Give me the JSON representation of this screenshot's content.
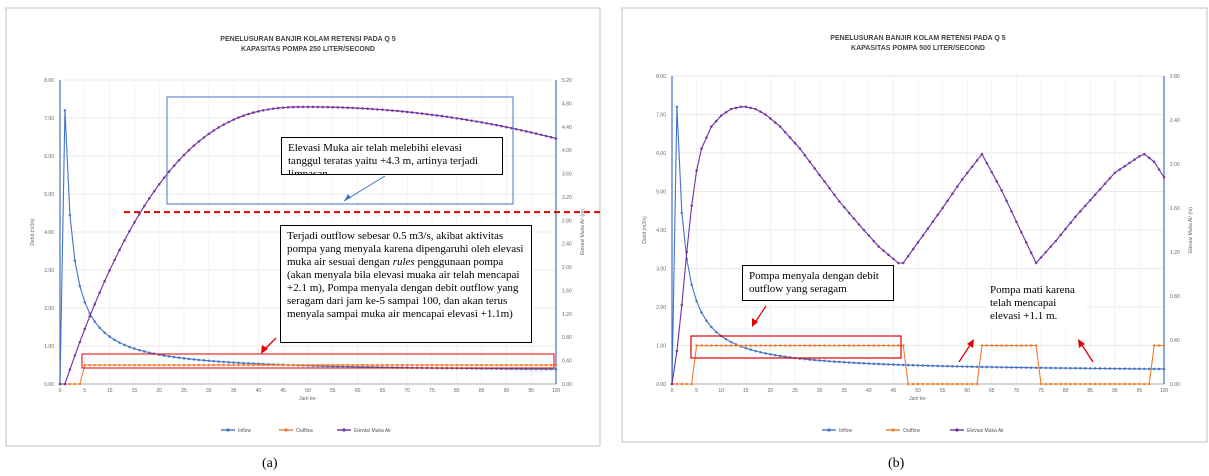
{
  "chart_data": [
    {
      "type": "line",
      "title": "PENELUSURAN BANJIR KOLAM RETENSI PADA Q 5",
      "subtitle": "KAPASITAS POMPA 250 LITER/SECOND",
      "xlabel": "Jam ke-",
      "ylabel": "Debit (m3/s)",
      "ylabel_right": "Elevasi Muka Air (m)",
      "xlim": [
        0,
        100
      ],
      "ylim": [
        0,
        8
      ],
      "ylim_right": [
        0,
        5.2
      ],
      "x_ticks": [
        0,
        5,
        10,
        15,
        20,
        25,
        30,
        35,
        40,
        45,
        50,
        55,
        60,
        65,
        70,
        75,
        80,
        85,
        90,
        95,
        100
      ],
      "y_ticks": [
        "0.00",
        "1.00",
        "2.00",
        "3.00",
        "4.00",
        "5.00",
        "6.00",
        "7.00",
        "8.00"
      ],
      "y_right_ticks": [
        "0.00",
        "0.40",
        "0.80",
        "1.20",
        "1.60",
        "2.00",
        "2.40",
        "2.80",
        "3.20",
        "3.60",
        "4.00",
        "4.40",
        "4.80",
        "5.20"
      ],
      "legend_position": "bottom",
      "grid": true,
      "series": [
        {
          "name": "Inflow",
          "color": "#4472C4",
          "axis": "left",
          "kind": "inflow",
          "peak": 7.2,
          "end": 0.3
        },
        {
          "name": "Outflow",
          "color": "#ED7D31",
          "axis": "left",
          "kind": "outflow_a",
          "on_level": 0.5,
          "on_from": 5
        },
        {
          "name": "Elevasi Muka Air",
          "color": "#7030A0",
          "axis": "right",
          "kind": "elev_a",
          "peak": 4.74,
          "peak_x": 50,
          "end": 4.2
        }
      ],
      "annotations": [
        {
          "id": "elev",
          "text": "Elevasi Muka air telah melebihi elevasi tanggul teratas yaitu +4.3 m, artinya terjadi limpasan."
        },
        {
          "id": "outflow",
          "text_parts": [
            "Terjadi outflow sebesar 0.5 m3/s, akibat aktivitas pompa yang menyala karena dipengaruhi oleh elevasi muka air sesuai dengan ",
            "rules",
            " penggunaan pompa (akan menyala bila elevasi muaka air telah mencapai +2.1 m), Pompa menyala dengan debit outflow yang seragam dari jam ke-5 sampai 100, dan akan terus menyala sampai muka air mencapai elevasi +1.1m)"
          ]
        }
      ],
      "highlight": {
        "dashed_line_elevation": 2.94,
        "dashed_color": "#E00000",
        "box_color": "#E00000",
        "blue_box_color": "#4472C4"
      }
    },
    {
      "type": "line",
      "title": "PENELUSURAN BANJIR KOLAM RETENSI PADA Q 5",
      "subtitle": "KAPASITAS POMPA 500 LITER/SECOND",
      "xlabel": "Jam ke-",
      "ylabel": "Debit (m3/s)",
      "ylabel_right": "Elevasi Muka Air (m)",
      "xlim": [
        0,
        100
      ],
      "ylim": [
        0,
        8
      ],
      "ylim_right": [
        0,
        2.8
      ],
      "x_ticks": [
        0,
        5,
        10,
        15,
        20,
        25,
        30,
        35,
        40,
        45,
        50,
        55,
        60,
        65,
        70,
        75,
        80,
        85,
        90,
        95,
        100
      ],
      "y_ticks": [
        "0.00",
        "1.00",
        "2.00",
        "3.00",
        "4.00",
        "5.00",
        "6.00",
        "7.00",
        "8.00"
      ],
      "y_right_ticks": [
        "0.00",
        "0.40",
        "0.80",
        "1.20",
        "1.60",
        "2.00",
        "2.40",
        "2.80"
      ],
      "legend_position": "bottom",
      "grid": true,
      "series": [
        {
          "name": "Inflow",
          "color": "#4472C4",
          "axis": "left",
          "kind": "inflow",
          "peak": 7.2,
          "end": 0.3
        },
        {
          "name": "Outflow",
          "color": "#ED7D31",
          "axis": "left",
          "kind": "outflow_b",
          "on_level": 1.0,
          "intervals": [
            [
              5,
              47
            ],
            [
              63,
              74
            ],
            [
              98,
              100
            ]
          ]
        },
        {
          "name": "Elevasi Muka Air",
          "color": "#7030A0",
          "axis": "right",
          "kind": "elev_b",
          "points": [
            [
              0,
              0
            ],
            [
              1,
              0.3
            ],
            [
              2,
              0.72
            ],
            [
              3,
              1.2
            ],
            [
              4,
              1.62
            ],
            [
              5,
              1.94
            ],
            [
              6,
              2.14
            ],
            [
              8,
              2.34
            ],
            [
              10,
              2.44
            ],
            [
              12,
              2.5
            ],
            [
              14,
              2.52
            ],
            [
              15,
              2.52
            ],
            [
              17,
              2.5
            ],
            [
              19,
              2.45
            ],
            [
              22,
              2.34
            ],
            [
              26,
              2.14
            ],
            [
              30,
              1.9
            ],
            [
              34,
              1.66
            ],
            [
              38,
              1.45
            ],
            [
              42,
              1.25
            ],
            [
              46,
              1.1
            ],
            [
              47,
              1.1
            ],
            [
              51,
              1.35
            ],
            [
              55,
              1.6
            ],
            [
              59,
              1.86
            ],
            [
              63,
              2.09
            ],
            [
              67,
              1.76
            ],
            [
              71,
              1.38
            ],
            [
              74,
              1.1
            ],
            [
              78,
              1.3
            ],
            [
              82,
              1.52
            ],
            [
              86,
              1.72
            ],
            [
              90,
              1.92
            ],
            [
              95,
              2.07
            ],
            [
              96,
              2.09
            ],
            [
              98,
              2.02
            ],
            [
              100,
              1.88
            ]
          ]
        }
      ],
      "annotations": [
        {
          "id": "pompa-nyala",
          "text": "Pompa menyala dengan debit outflow yang seragam"
        },
        {
          "id": "pompa-mati",
          "text": "Pompa mati karena telah mencapai elevasi +1.1 m."
        }
      ],
      "highlight": {
        "box_color": "#E00000"
      }
    }
  ],
  "captions": {
    "a": "(a)",
    "b": "(b)"
  }
}
